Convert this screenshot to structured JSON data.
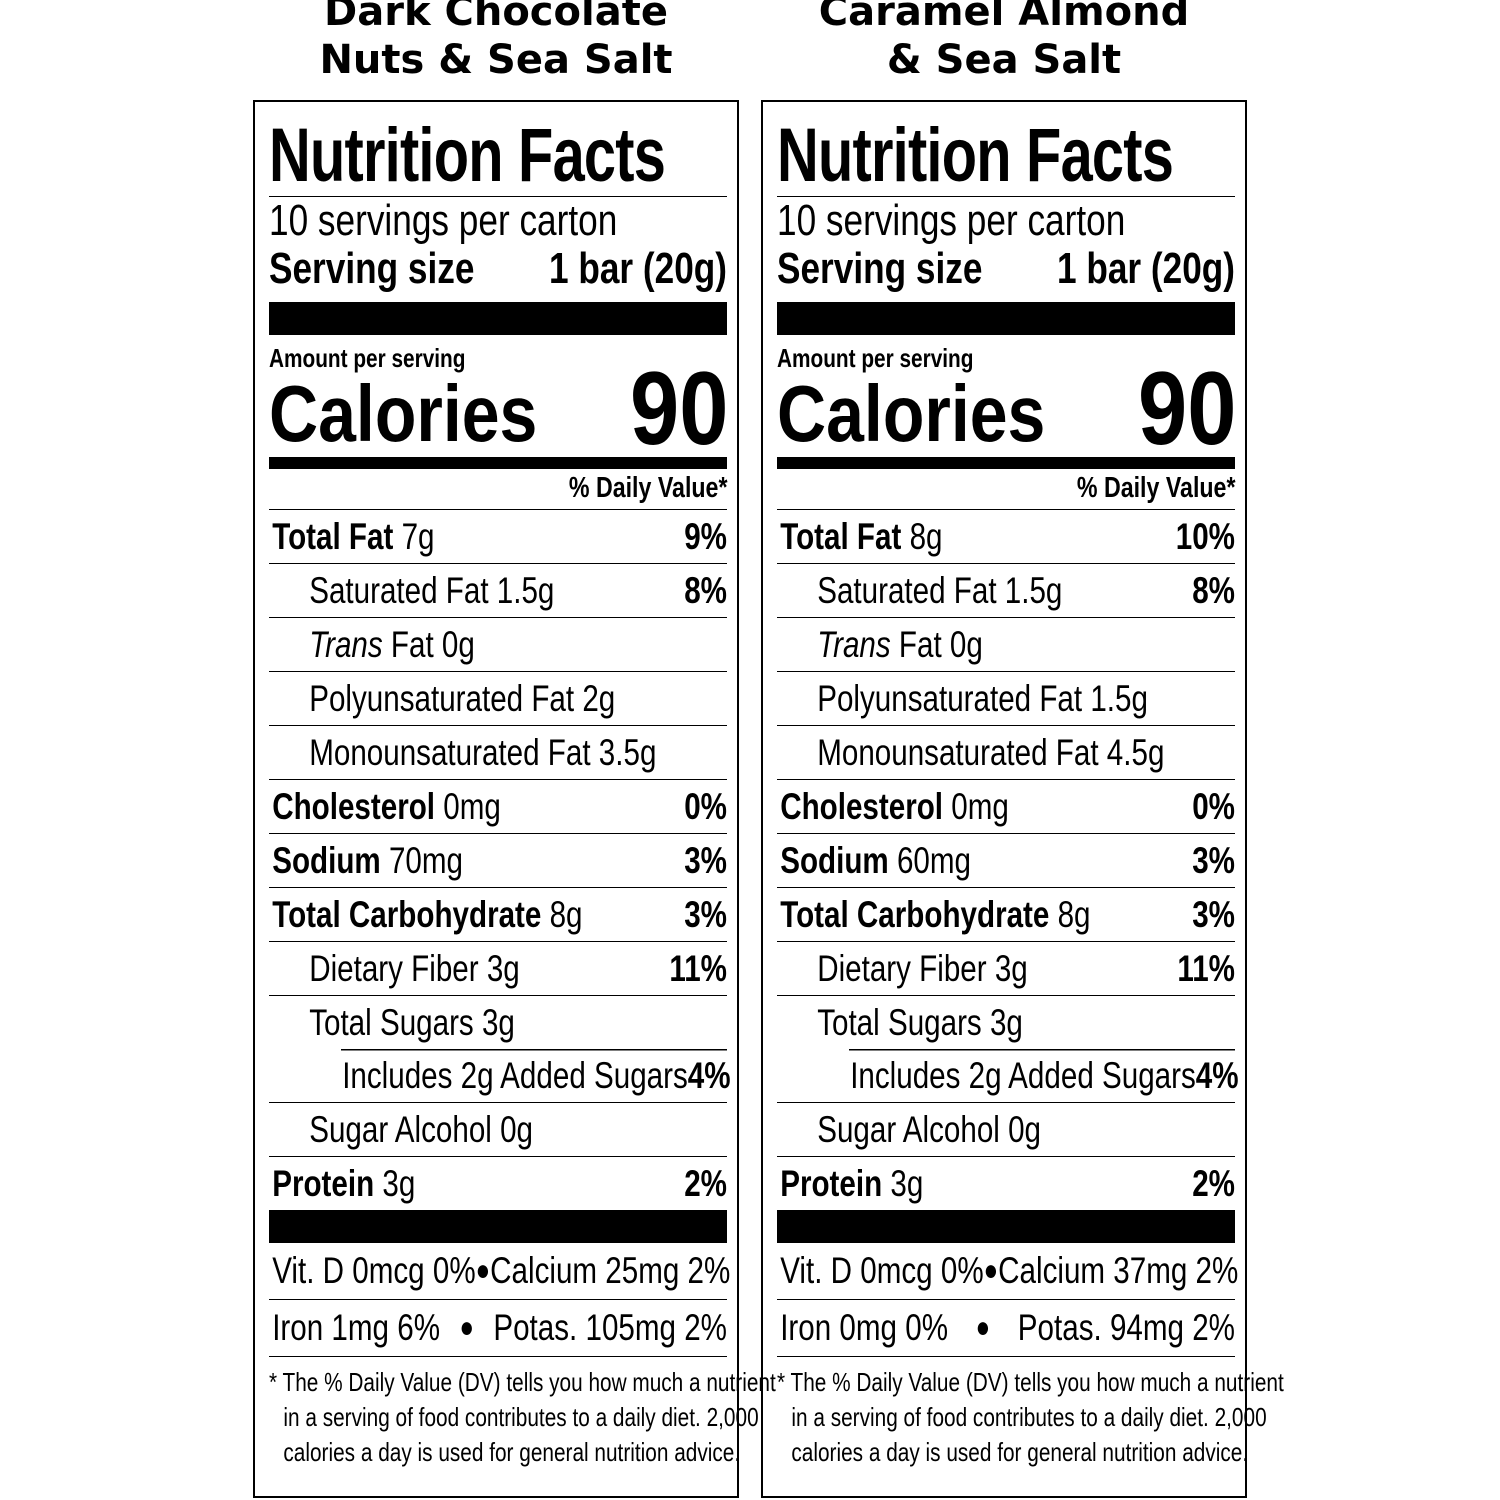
{
  "panels": [
    {
      "title_lines": [
        "Dark Chocolate",
        "Nuts & Sea Salt"
      ],
      "heading": "Nutrition Facts",
      "servings_per_container": "10 servings per carton",
      "serving_size_label": "Serving size",
      "serving_size_value": "1 bar (20g)",
      "amount_per_serving": "Amount per serving",
      "calories_label": "Calories",
      "calories_value": "90",
      "dv_header": "% Daily Value*",
      "nutrients": [
        {
          "label": "Total Fat",
          "amount": "7g",
          "dv": "9%",
          "bold": true,
          "level": 0
        },
        {
          "label": "Saturated Fat",
          "amount": "1.5g",
          "dv": "8%",
          "level": 1
        },
        {
          "label_italic": "Trans",
          "label": "Fat",
          "amount": "0g",
          "dv": "",
          "level": 1
        },
        {
          "label": "Polyunsaturated Fat",
          "amount": "2g",
          "dv": "",
          "level": 1
        },
        {
          "label": "Monounsaturated Fat",
          "amount": "3.5g",
          "dv": "",
          "level": 1
        },
        {
          "label": "Cholesterol",
          "amount": "0mg",
          "dv": "0%",
          "bold": true,
          "level": 0
        },
        {
          "label": "Sodium",
          "amount": "70mg",
          "dv": "3%",
          "bold": true,
          "level": 0
        },
        {
          "label": "Total Carbohydrate",
          "amount": "8g",
          "dv": "3%",
          "bold": true,
          "level": 0
        },
        {
          "label": "Dietary Fiber",
          "amount": "3g",
          "dv": "11%",
          "level": 1
        },
        {
          "label": "Total Sugars",
          "amount": "3g",
          "dv": "",
          "level": 1
        },
        {
          "label": "Includes 2g Added Sugars",
          "amount": "",
          "dv": "4%",
          "level": 2
        },
        {
          "label": "Sugar Alcohol",
          "amount": "0g",
          "dv": "",
          "level": 1
        },
        {
          "label": "Protein",
          "amount": "3g",
          "dv": "2%",
          "bold": true,
          "level": 0
        }
      ],
      "vitamins": [
        [
          "Vit. D 0mcg 0%",
          "Calcium 25mg 2%"
        ],
        [
          "Iron 1mg 6%",
          "Potas. 105mg 2%"
        ]
      ],
      "footnote_lines": [
        "* The % Daily Value (DV) tells you how much a nutrient",
        "in a serving of food contributes to a daily diet. 2,000",
        "calories a day is used for general nutrition advice."
      ]
    },
    {
      "title_lines": [
        "Caramel Almond",
        "& Sea Salt"
      ],
      "heading": "Nutrition Facts",
      "servings_per_container": "10 servings per carton",
      "serving_size_label": "Serving size",
      "serving_size_value": "1 bar (20g)",
      "amount_per_serving": "Amount per serving",
      "calories_label": "Calories",
      "calories_value": "90",
      "dv_header": "% Daily Value*",
      "nutrients": [
        {
          "label": "Total Fat",
          "amount": "8g",
          "dv": "10%",
          "bold": true,
          "level": 0
        },
        {
          "label": "Saturated Fat",
          "amount": "1.5g",
          "dv": "8%",
          "level": 1
        },
        {
          "label_italic": "Trans",
          "label": "Fat",
          "amount": "0g",
          "dv": "",
          "level": 1
        },
        {
          "label": "Polyunsaturated Fat",
          "amount": "1.5g",
          "dv": "",
          "level": 1
        },
        {
          "label": "Monounsaturated Fat",
          "amount": "4.5g",
          "dv": "",
          "level": 1
        },
        {
          "label": "Cholesterol",
          "amount": "0mg",
          "dv": "0%",
          "bold": true,
          "level": 0
        },
        {
          "label": "Sodium",
          "amount": "60mg",
          "dv": "3%",
          "bold": true,
          "level": 0
        },
        {
          "label": "Total Carbohydrate",
          "amount": "8g",
          "dv": "3%",
          "bold": true,
          "level": 0
        },
        {
          "label": "Dietary Fiber",
          "amount": "3g",
          "dv": "11%",
          "level": 1
        },
        {
          "label": "Total Sugars",
          "amount": "3g",
          "dv": "",
          "level": 1
        },
        {
          "label": "Includes 2g Added Sugars",
          "amount": "",
          "dv": "4%",
          "level": 2
        },
        {
          "label": "Sugar Alcohol",
          "amount": "0g",
          "dv": "",
          "level": 1
        },
        {
          "label": "Protein",
          "amount": "3g",
          "dv": "2%",
          "bold": true,
          "level": 0
        }
      ],
      "vitamins": [
        [
          "Vit. D 0mcg 0%",
          "Calcium 37mg 2%"
        ],
        [
          "Iron 0mg 0%",
          "Potas. 94mg 2%"
        ]
      ],
      "footnote_lines": [
        "* The % Daily Value (DV) tells you how much a nutrient",
        "in a serving of food contributes to a daily diet. 2,000",
        "calories a day is used for general nutrition advice."
      ]
    }
  ]
}
